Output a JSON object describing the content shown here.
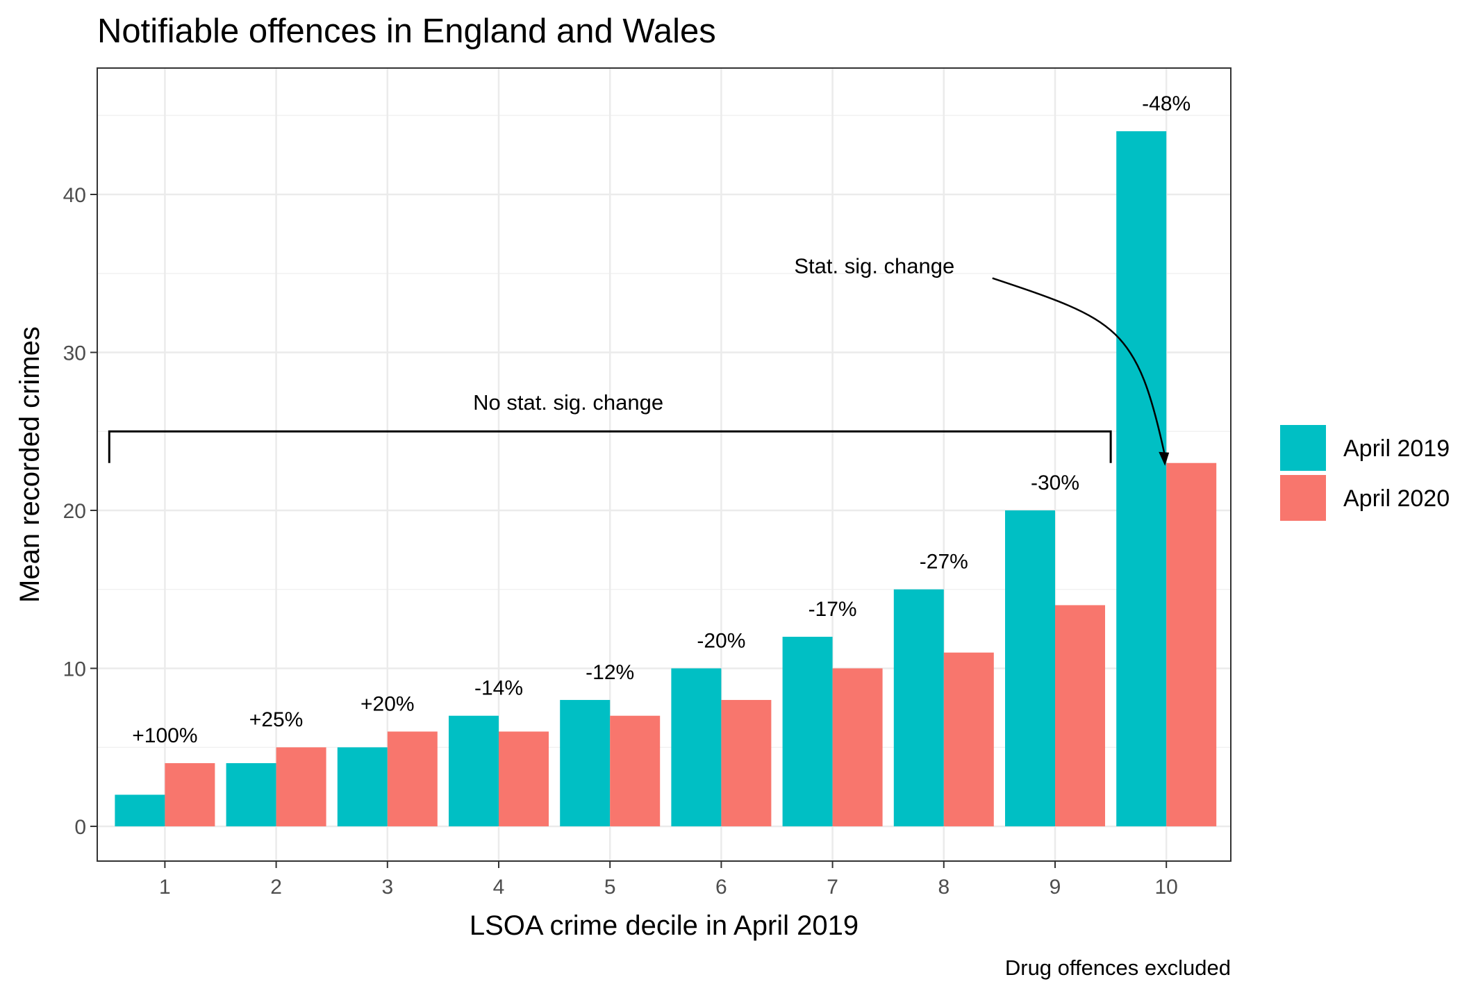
{
  "chart_data": {
    "type": "bar",
    "title": "Notifiable offences in England and Wales",
    "xlabel": "LSOA crime decile in April 2019",
    "ylabel": "Mean recorded crimes",
    "caption": "Drug offences excluded",
    "categories": [
      "1",
      "2",
      "3",
      "4",
      "5",
      "6",
      "7",
      "8",
      "9",
      "10"
    ],
    "series": [
      {
        "name": "April 2019",
        "color": "#00BFC4",
        "values": [
          2,
          4,
          5,
          7,
          8,
          10,
          12,
          15,
          20,
          44
        ]
      },
      {
        "name": "April 2020",
        "color": "#F8766D",
        "values": [
          4,
          5,
          6,
          6,
          7,
          8,
          10,
          11,
          14,
          23
        ]
      }
    ],
    "change_labels": [
      "+100%",
      "+25%",
      "+20%",
      "-14%",
      "-12%",
      "-20%",
      "-17%",
      "-27%",
      "-30%",
      "-48%"
    ],
    "yticks": [
      0,
      10,
      20,
      30,
      40
    ],
    "ylim": [
      -2.2,
      48
    ],
    "grid": true,
    "legend_position": "right",
    "annotations": {
      "no_sig_label": "No stat. sig. change",
      "no_sig_y": 25,
      "sig_label": "Stat. sig. change"
    }
  }
}
